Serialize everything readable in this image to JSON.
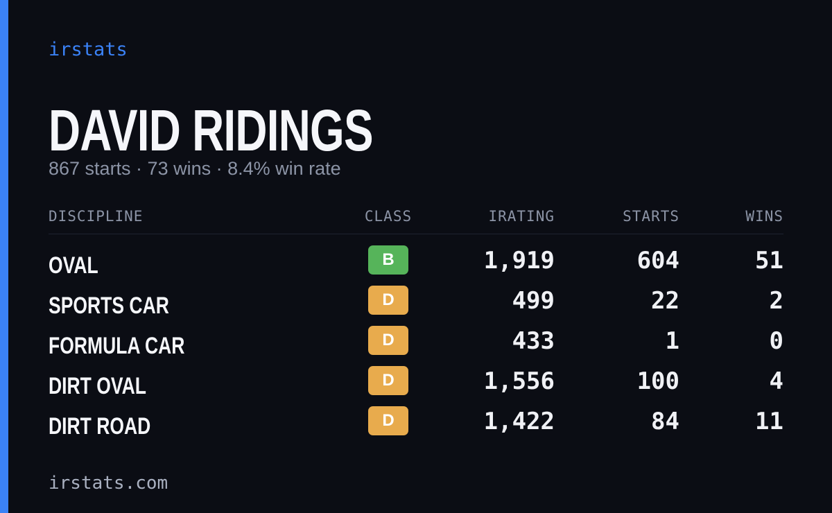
{
  "brand": "irstats",
  "title": "DAVID RIDINGS",
  "subtitle": "867 starts · 73 wins · 8.4% win rate",
  "table": {
    "headers": [
      "DISCIPLINE",
      "CLASS",
      "IRATING",
      "STARTS",
      "WINS"
    ],
    "rows": [
      [
        "OVAL",
        "B",
        "1,919",
        "604",
        "51"
      ],
      [
        "SPORTS CAR",
        "D",
        "499",
        "22",
        "2"
      ],
      [
        "FORMULA CAR",
        "D",
        "433",
        "1",
        "0"
      ],
      [
        "DIRT OVAL",
        "D",
        "1,556",
        "100",
        "4"
      ],
      [
        "DIRT ROAD",
        "D",
        "1,422",
        "84",
        "11"
      ]
    ]
  },
  "footer": "irstats.com"
}
